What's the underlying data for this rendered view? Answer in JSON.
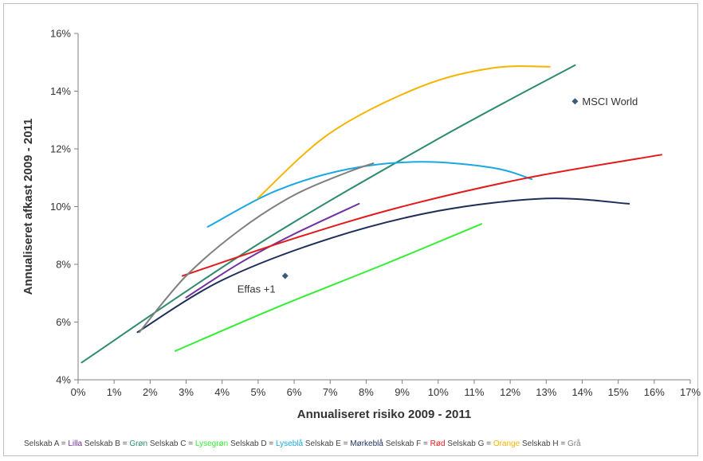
{
  "chart_data": {
    "type": "line",
    "xlabel": "Annualiseret risiko 2009 - 2011",
    "ylabel": "Annualiseret afkast 2009 - 2011",
    "xlim": [
      0,
      17
    ],
    "ylim": [
      4,
      16
    ],
    "x_ticks": [
      "0%",
      "1%",
      "2%",
      "3%",
      "4%",
      "5%",
      "6%",
      "7%",
      "8%",
      "9%",
      "10%",
      "11%",
      "12%",
      "13%",
      "14%",
      "15%",
      "16%",
      "17%"
    ],
    "y_ticks": [
      "4%",
      "6%",
      "8%",
      "10%",
      "12%",
      "14%",
      "16%"
    ],
    "grid": false,
    "series": [
      {
        "name": "Selskab A",
        "color": "#7030a0",
        "points": [
          [
            3.0,
            6.85
          ],
          [
            4.5,
            8.05
          ],
          [
            6.0,
            9.05
          ],
          [
            7.8,
            10.1
          ]
        ]
      },
      {
        "name": "Selskab B",
        "color": "#2e8b6f",
        "points": [
          [
            0.1,
            4.6
          ],
          [
            5.0,
            8.7
          ],
          [
            10.0,
            12.35
          ],
          [
            13.8,
            14.9
          ]
        ]
      },
      {
        "name": "Selskab C",
        "color": "#33ee33",
        "points": [
          [
            2.7,
            5.0
          ],
          [
            5.5,
            6.5
          ],
          [
            8.5,
            8.0
          ],
          [
            11.2,
            9.4
          ]
        ]
      },
      {
        "name": "Selskab D",
        "color": "#1ba7e0",
        "points": [
          [
            3.6,
            9.3
          ],
          [
            5.5,
            10.55
          ],
          [
            7.5,
            11.3
          ],
          [
            9.5,
            11.55
          ],
          [
            11.5,
            11.35
          ],
          [
            12.6,
            10.95
          ]
        ]
      },
      {
        "name": "Selskab E",
        "color": "#1f2d5a",
        "points": [
          [
            1.65,
            5.65
          ],
          [
            4.0,
            7.45
          ],
          [
            7.0,
            8.9
          ],
          [
            10.0,
            9.85
          ],
          [
            13.0,
            10.28
          ],
          [
            15.3,
            10.1
          ]
        ]
      },
      {
        "name": "Selskab F",
        "color": "#e31a1c",
        "points": [
          [
            2.9,
            7.6
          ],
          [
            6.0,
            8.9
          ],
          [
            9.0,
            10.0
          ],
          [
            12.5,
            11.0
          ],
          [
            16.2,
            11.8
          ]
        ]
      },
      {
        "name": "Selskab G",
        "color": "#f4b400",
        "points": [
          [
            5.0,
            10.3
          ],
          [
            7.0,
            12.55
          ],
          [
            9.5,
            14.15
          ],
          [
            11.5,
            14.8
          ],
          [
            13.1,
            14.85
          ]
        ]
      },
      {
        "name": "Selskab H",
        "color": "#7f7f7f",
        "points": [
          [
            1.7,
            5.65
          ],
          [
            3.0,
            7.6
          ],
          [
            4.5,
            9.2
          ],
          [
            6.0,
            10.4
          ],
          [
            7.5,
            11.2
          ],
          [
            8.2,
            11.5
          ]
        ]
      }
    ],
    "markers": [
      {
        "label": "MSCI World",
        "x": 13.8,
        "y": 13.65,
        "color": "#3a5a78"
      },
      {
        "label": "Effas +1",
        "x": 5.75,
        "y": 7.6,
        "color": "#3a5a78"
      }
    ]
  },
  "legend": [
    {
      "prefix": "Selskab A = ",
      "color_word": "Lilla",
      "color": "#7030a0"
    },
    {
      "prefix": "Selskab B = ",
      "color_word": "Grøn",
      "color": "#2e8b6f"
    },
    {
      "prefix": "Selskab C = ",
      "color_word": "Lysegrøn",
      "color": "#33ee33"
    },
    {
      "prefix": "Selskab D = ",
      "color_word": "Lyseblå",
      "color": "#1ba7e0"
    },
    {
      "prefix": "Selskab E = ",
      "color_word": "Mørkeblå",
      "color": "#1f2d5a"
    },
    {
      "prefix": "Selskab F = ",
      "color_word": "Rød",
      "color": "#e31a1c"
    },
    {
      "prefix": "Selskab G = ",
      "color_word": "Orange",
      "color": "#f4b400"
    },
    {
      "prefix": "Selskab H = ",
      "color_word": "Grå",
      "color": "#7f7f7f"
    }
  ]
}
